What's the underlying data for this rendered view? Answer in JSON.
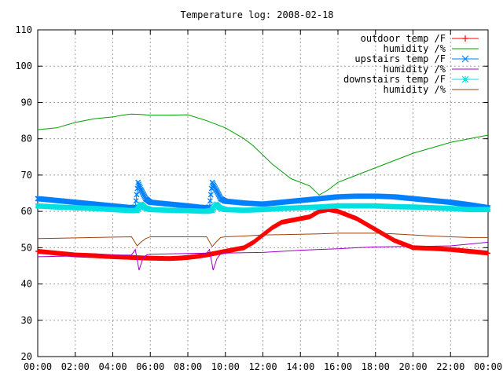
{
  "chart_data": {
    "type": "line",
    "title": "Temperature log: 2008-02-18",
    "xlabel": "",
    "ylabel": "",
    "ylim": [
      20,
      110
    ],
    "xlim_hours": [
      0,
      24
    ],
    "x_tick_labels": [
      "00:00",
      "02:00",
      "04:00",
      "06:00",
      "08:00",
      "10:00",
      "12:00",
      "14:00",
      "16:00",
      "18:00",
      "20:00",
      "22:00",
      "00:00"
    ],
    "y_ticks": [
      20,
      30,
      40,
      50,
      60,
      70,
      80,
      90,
      100,
      110
    ],
    "grid": true,
    "legend_position": "top-right",
    "series": [
      {
        "name": "outdoor temp /F",
        "color": "#ff0000",
        "marker": "plus",
        "x": [
          0,
          1,
          2,
          3,
          4,
          5,
          6,
          7,
          7.5,
          8,
          8.5,
          9,
          9.5,
          10,
          10.5,
          11,
          11.5,
          12,
          12.5,
          13,
          13.5,
          14,
          14.5,
          15,
          15.5,
          16,
          16.5,
          17,
          17.5,
          18,
          18.5,
          19,
          19.5,
          20,
          21,
          22,
          23,
          24
        ],
        "y": [
          49,
          48.5,
          48,
          47.8,
          47.5,
          47.3,
          47.1,
          47,
          47.1,
          47.3,
          47.6,
          48,
          48.5,
          49,
          49.5,
          50,
          51.5,
          53.5,
          55.5,
          57,
          57.5,
          58,
          58.5,
          60,
          60.5,
          60,
          59,
          58,
          56.5,
          55,
          53.5,
          52,
          51,
          50,
          49.8,
          49.5,
          49,
          48.5
        ]
      },
      {
        "name": "humidity /%",
        "color": "#00a000",
        "marker": "none",
        "x": [
          0,
          1,
          2,
          3,
          4,
          4.5,
          5,
          5.5,
          6,
          7,
          8,
          9,
          10,
          10.5,
          11,
          11.5,
          12,
          12.5,
          13,
          13.5,
          14,
          14.5,
          15,
          15.5,
          16,
          16.5,
          17,
          17.5,
          18,
          19,
          20,
          21,
          22,
          23,
          24
        ],
        "y": [
          82.5,
          83,
          84.5,
          85.5,
          86,
          86.5,
          86.8,
          86.7,
          86.5,
          86.5,
          86.6,
          85,
          83,
          81.5,
          80,
          78,
          75.5,
          73,
          71,
          69,
          68,
          67,
          64.5,
          66,
          68,
          69,
          70,
          71,
          72,
          74,
          76,
          77.5,
          79,
          80,
          81
        ]
      },
      {
        "name": "upstairs temp /F",
        "color": "#0080ff",
        "marker": "x",
        "x": [
          0,
          1,
          2,
          3,
          4,
          5,
          5.2,
          5.35,
          5.5,
          5.75,
          6,
          7,
          8,
          8.5,
          9,
          9.15,
          9.3,
          9.5,
          9.75,
          10,
          11,
          12,
          13,
          14,
          15,
          16,
          17,
          18,
          19,
          20,
          21,
          22,
          23,
          24
        ],
        "y": [
          63.5,
          63,
          62.5,
          62,
          61.5,
          61,
          61.2,
          68,
          66,
          63.5,
          62.5,
          62,
          61.5,
          61.2,
          61,
          61.2,
          68,
          66,
          63.5,
          62.8,
          62.3,
          62,
          62.5,
          63,
          63.5,
          64,
          64.2,
          64.2,
          64,
          63.5,
          63,
          62.5,
          61.8,
          61
        ]
      },
      {
        "name": "humidity /%",
        "color": "#a000c8",
        "marker": "none",
        "x": [
          0,
          1,
          2,
          3,
          4,
          5,
          5.2,
          5.4,
          5.6,
          5.8,
          6,
          7,
          8,
          9,
          9.15,
          9.35,
          9.55,
          9.75,
          10,
          11,
          12,
          13,
          14,
          15,
          16,
          17,
          18,
          19,
          20,
          21,
          22,
          23,
          24
        ],
        "y": [
          47.5,
          47.6,
          47.7,
          47.8,
          47.9,
          48,
          49.5,
          43.8,
          47,
          48,
          48.2,
          48.3,
          48.4,
          48.5,
          49.5,
          43.8,
          47,
          48.3,
          48.5,
          48.6,
          48.7,
          49,
          49.3,
          49.5,
          49.7,
          50,
          50.2,
          50.3,
          50.4,
          50.4,
          50.5,
          51,
          51.5
        ]
      },
      {
        "name": "downstairs temp /F",
        "color": "#00e0e0",
        "marker": "star",
        "x": [
          0,
          1,
          2,
          3,
          4,
          5,
          5.3,
          5.5,
          5.7,
          6,
          7,
          8,
          9,
          9.3,
          9.5,
          9.7,
          10,
          11,
          12,
          13,
          14,
          15,
          16,
          17,
          18,
          19,
          20,
          21,
          22,
          23,
          24
        ],
        "y": [
          61.5,
          61.2,
          61,
          60.8,
          60.5,
          60.2,
          60.3,
          62,
          61,
          60.5,
          60.3,
          60.2,
          60,
          60.3,
          62,
          61,
          60.5,
          60.3,
          60.5,
          60.8,
          61,
          61.2,
          61.5,
          61.5,
          61.5,
          61.3,
          61.2,
          61,
          60.8,
          60.5,
          60.5
        ]
      },
      {
        "name": "humidity /%",
        "color": "#a0400a",
        "marker": "none",
        "x": [
          0,
          1,
          2,
          3,
          4,
          5,
          5.3,
          5.5,
          5.75,
          6,
          7,
          8,
          9,
          9.3,
          9.5,
          9.75,
          10,
          11,
          12,
          13,
          14,
          15,
          16,
          17,
          18,
          19,
          20,
          21,
          22,
          23,
          24
        ],
        "y": [
          52.5,
          52.6,
          52.7,
          52.8,
          52.9,
          53,
          50.5,
          51.5,
          52.5,
          53,
          53,
          53,
          53,
          50.3,
          51.5,
          52.8,
          53,
          53.2,
          53.5,
          53.6,
          53.7,
          53.8,
          54,
          54,
          54,
          53.8,
          53.5,
          53.2,
          53,
          52.8,
          52.8
        ]
      }
    ]
  }
}
